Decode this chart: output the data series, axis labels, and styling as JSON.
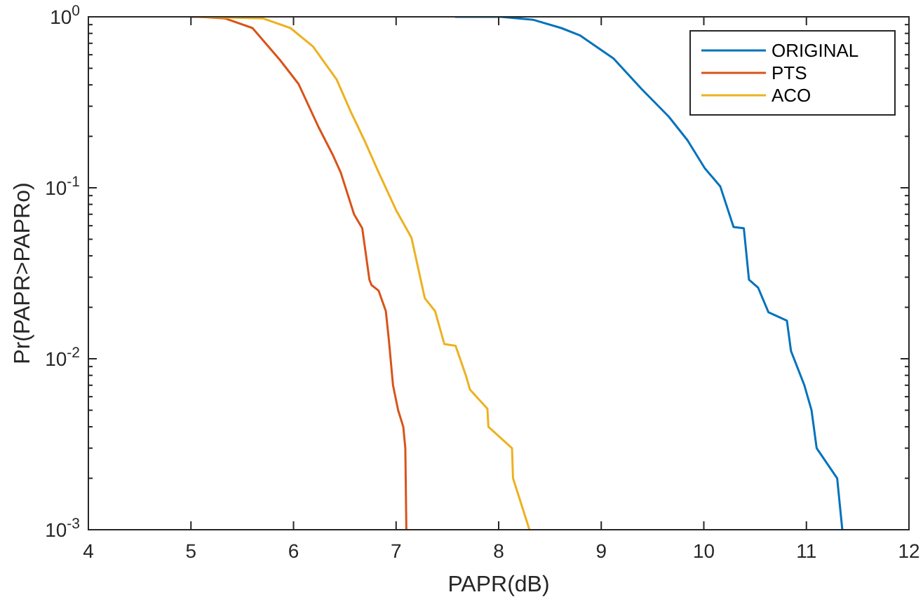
{
  "chart_data": {
    "type": "line",
    "xlabel": "PAPR(dB)",
    "ylabel": "Pr(PAPR>PAPRo)",
    "log": "y",
    "xlim": [
      4,
      12
    ],
    "ylim": [
      0.001,
      1
    ],
    "xticks": [
      4,
      5,
      6,
      7,
      8,
      9,
      10,
      11,
      12
    ],
    "yticks": [
      {
        "value": 0.001,
        "label": "10$^{-3}$"
      },
      {
        "value": 0.002,
        "label": null
      },
      {
        "value": 0.003,
        "label": null
      },
      {
        "value": 0.004,
        "label": null
      },
      {
        "value": 0.005,
        "label": null
      },
      {
        "value": 0.006,
        "label": null
      },
      {
        "value": 0.007,
        "label": null
      },
      {
        "value": 0.008,
        "label": null
      },
      {
        "value": 0.009,
        "label": null
      },
      {
        "value": 0.01,
        "label": "10$^{-2}$"
      },
      {
        "value": 0.02,
        "label": null
      },
      {
        "value": 0.03,
        "label": null
      },
      {
        "value": 0.04,
        "label": null
      },
      {
        "value": 0.05,
        "label": null
      },
      {
        "value": 0.06,
        "label": null
      },
      {
        "value": 0.07,
        "label": null
      },
      {
        "value": 0.08,
        "label": null
      },
      {
        "value": 0.09,
        "label": null
      },
      {
        "value": 0.1,
        "label": "10$^{-1}$"
      },
      {
        "value": 0.2,
        "label": null
      },
      {
        "value": 0.3,
        "label": null
      },
      {
        "value": 0.4,
        "label": null
      },
      {
        "value": 0.5,
        "label": null
      },
      {
        "value": 0.6,
        "label": null
      },
      {
        "value": 0.7,
        "label": null
      },
      {
        "value": 0.8,
        "label": null
      },
      {
        "value": 0.9,
        "label": null
      },
      {
        "value": 1,
        "label": "10$^{0}$"
      }
    ],
    "grid": false,
    "legend": "top right",
    "marker": "none",
    "line_style": "solid",
    "series": [
      {
        "name": "ORIGINAL",
        "color": "#0072bd",
        "x": [
          7.58,
          8.02,
          8.34,
          8.61,
          8.79,
          9.12,
          9.39,
          9.66,
          9.84,
          10.01,
          10.16,
          10.29,
          10.39,
          10.44,
          10.53,
          10.63,
          10.81,
          10.85,
          10.98,
          11.05,
          11.1,
          11.3,
          11.35
        ],
        "values": [
          1,
          1,
          0.96,
          0.86,
          0.78,
          0.57,
          0.38,
          0.26,
          0.19,
          0.13,
          0.102,
          0.059,
          0.058,
          0.029,
          0.026,
          0.0187,
          0.0167,
          0.0111,
          0.007,
          0.005,
          0.003,
          0.002,
          0.001
        ]
      },
      {
        "name": "PTS",
        "color": "#d95319",
        "x": [
          5.0,
          5.08,
          5.33,
          5.6,
          5.87,
          6.05,
          6.24,
          6.38,
          6.46,
          6.59,
          6.67,
          6.74,
          6.76,
          6.83,
          6.9,
          6.93,
          6.97,
          7.02,
          7.07,
          7.09,
          7.1
        ],
        "values": [
          1,
          1,
          0.98,
          0.86,
          0.557,
          0.404,
          0.229,
          0.157,
          0.123,
          0.07,
          0.058,
          0.029,
          0.027,
          0.025,
          0.019,
          0.0128,
          0.007,
          0.005,
          0.004,
          0.003,
          0.001
        ]
      },
      {
        "name": "ACO",
        "color": "#edb120",
        "x": [
          5.09,
          5.7,
          5.97,
          6.19,
          6.42,
          6.56,
          6.69,
          6.83,
          7.0,
          7.15,
          7.24,
          7.28,
          7.38,
          7.47,
          7.58,
          7.68,
          7.72,
          7.89,
          7.9,
          8.13,
          8.14,
          8.3
        ],
        "values": [
          1,
          0.98,
          0.86,
          0.67,
          0.43,
          0.277,
          0.19,
          0.123,
          0.074,
          0.051,
          0.029,
          0.0226,
          0.019,
          0.0122,
          0.0119,
          0.008,
          0.0066,
          0.0051,
          0.004,
          0.003,
          0.002,
          0.001
        ]
      }
    ]
  }
}
